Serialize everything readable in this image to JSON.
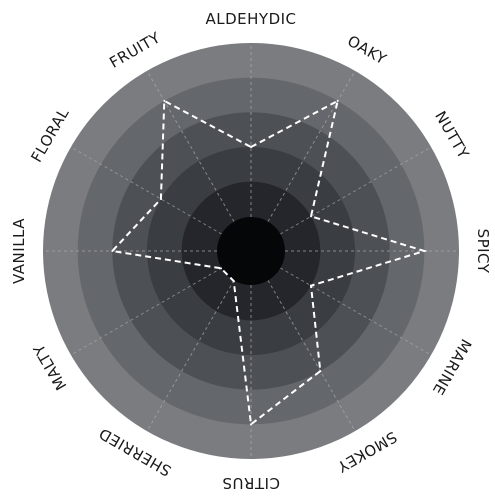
{
  "chart_data": {
    "type": "radar",
    "axes": [
      "ALDEHYDIC",
      "OAKY",
      "NUTTY",
      "SPICY",
      "MARINE",
      "SMOKEY",
      "CITRUS",
      "SHERRIED",
      "MALTY",
      "VANILLA",
      "FLORAL",
      "FRUITY"
    ],
    "values": [
      3,
      5,
      2,
      5,
      2,
      4,
      5,
      1,
      1,
      4,
      3,
      5
    ],
    "rlim": [
      0,
      6
    ],
    "levels": [
      1,
      2,
      3,
      4,
      5,
      6
    ],
    "grid": true
  },
  "colors": {
    "rings": [
      "#050608",
      "#24262b",
      "#3a3d42",
      "#4d5055",
      "#64676b",
      "#7a7c80"
    ],
    "series_line": "#ffffff",
    "spokes": "#a9abad"
  }
}
